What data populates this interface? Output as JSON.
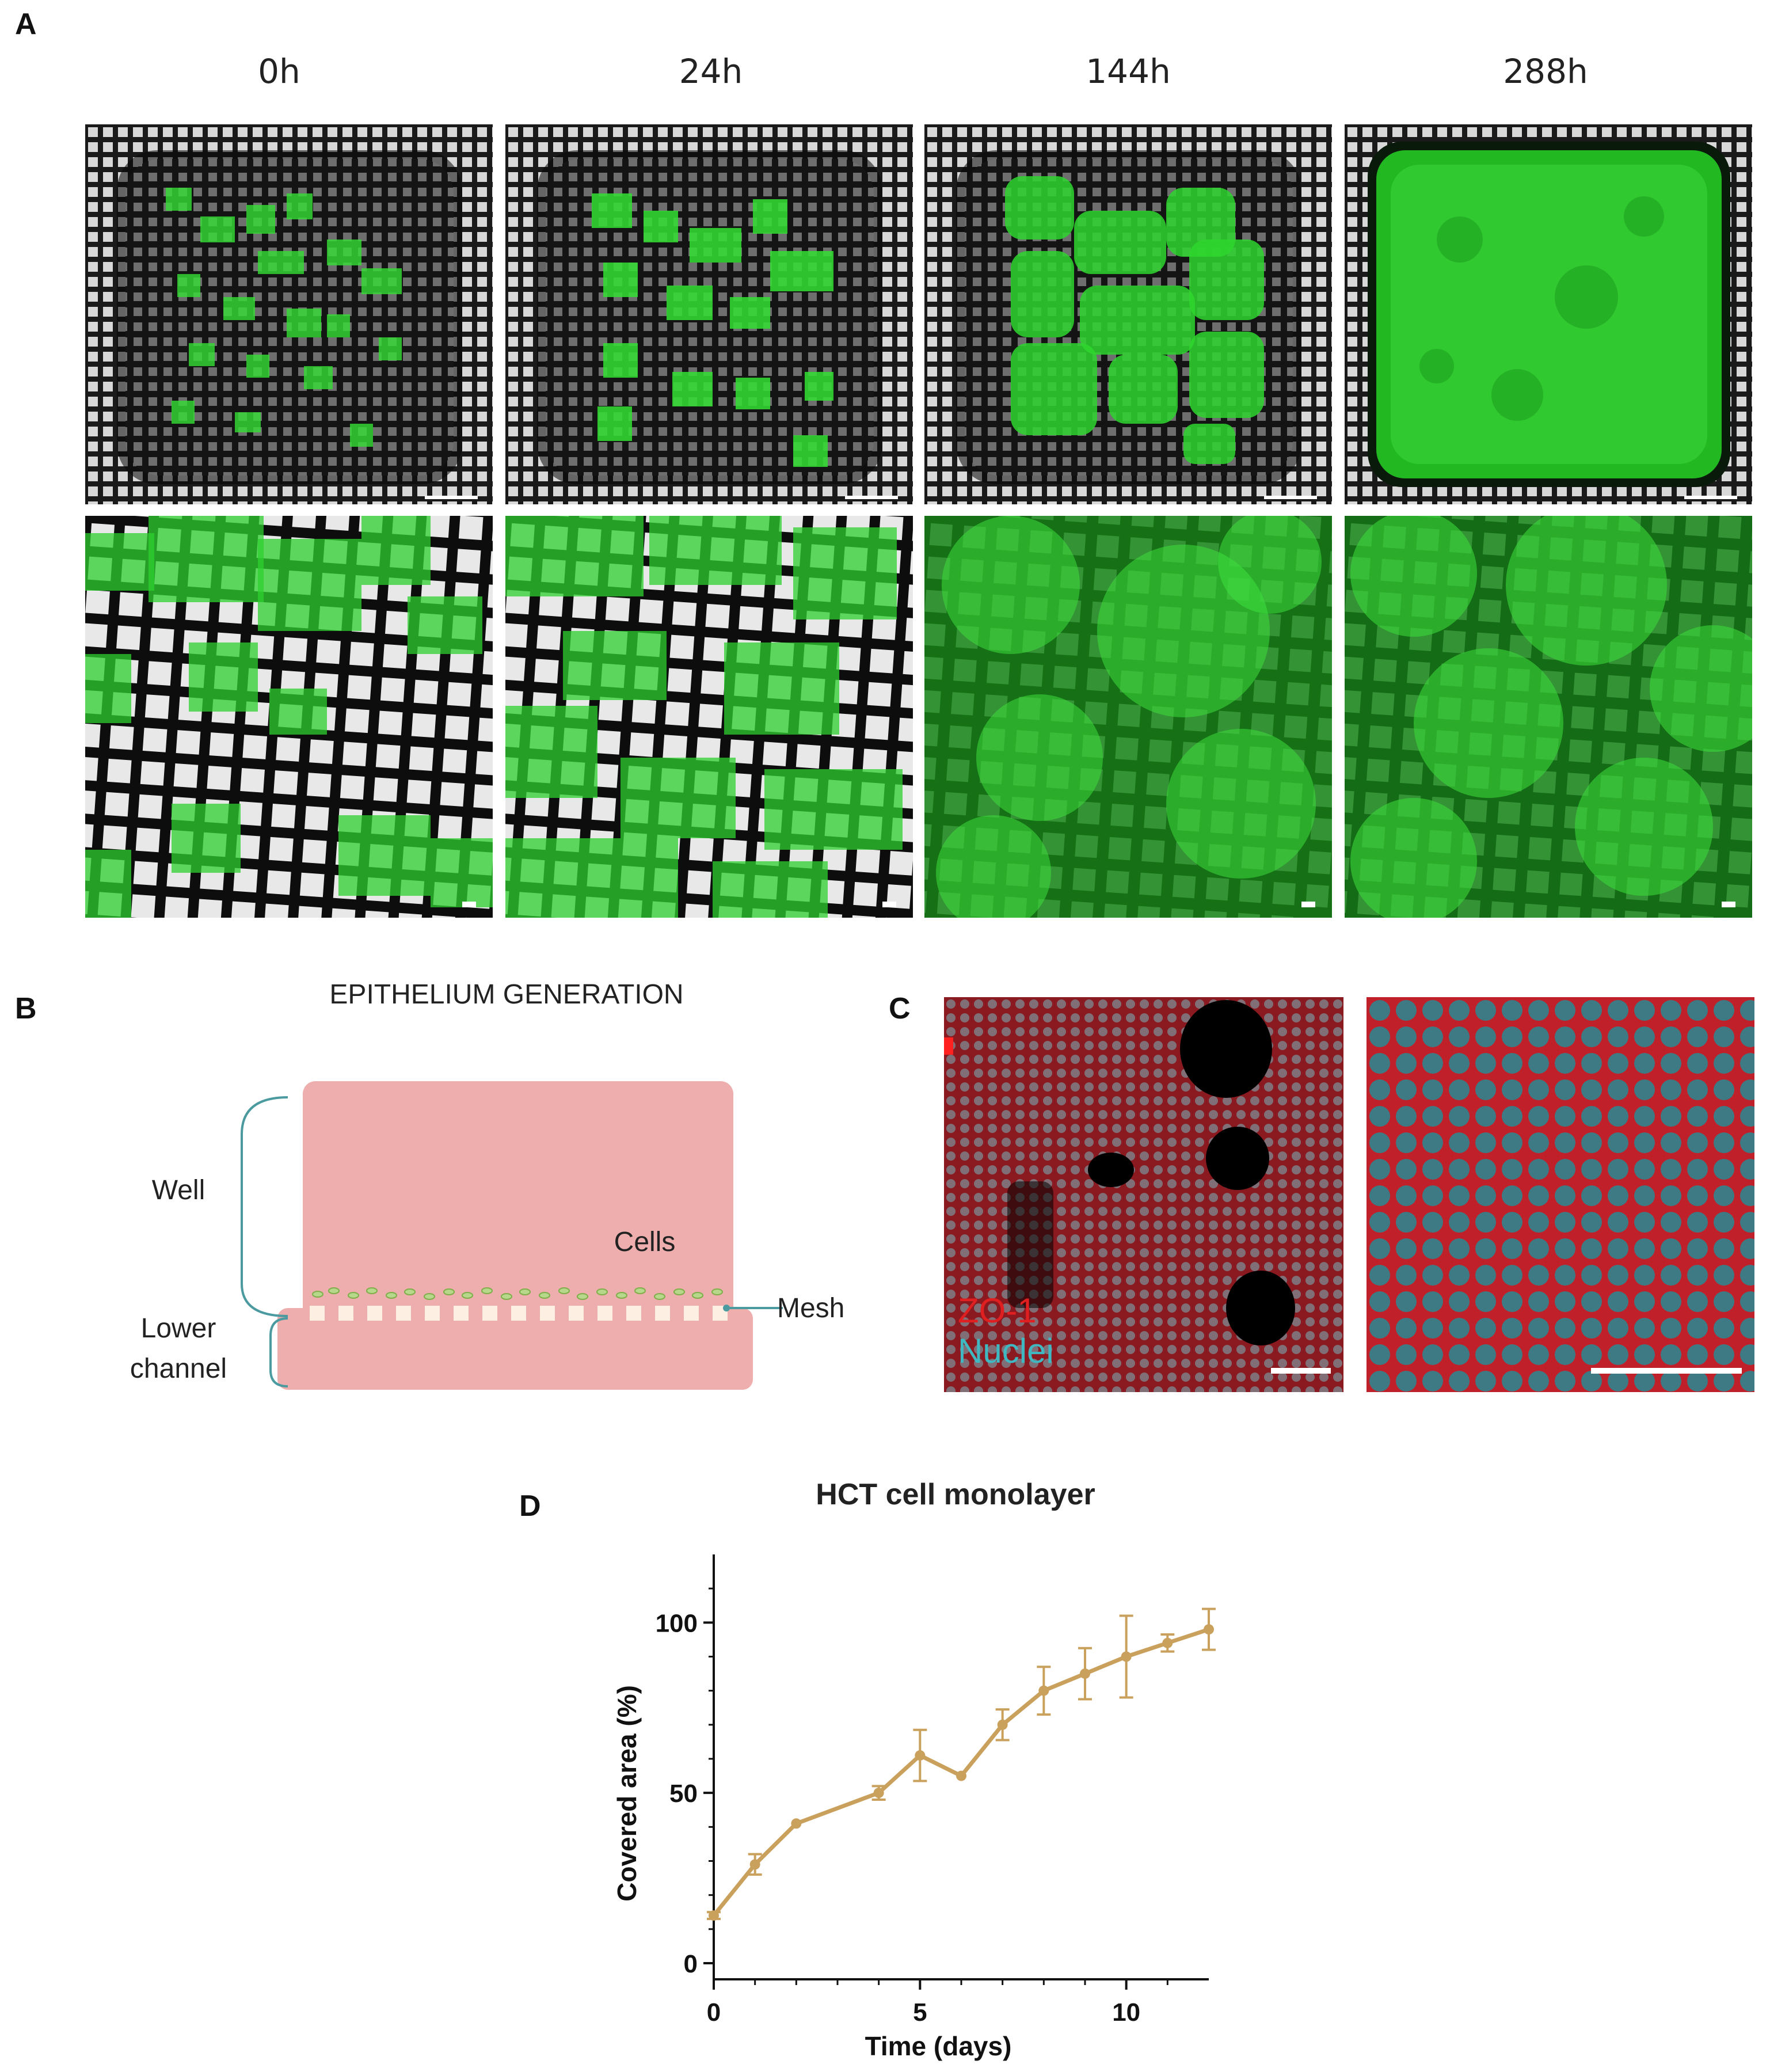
{
  "panels": {
    "a": {
      "letter": "A",
      "time_labels": [
        "0h",
        "24h",
        "144h",
        "288h"
      ]
    },
    "b": {
      "letter": "B",
      "title": "EPITHELIUM GENERATION",
      "labels": {
        "well": "Well",
        "cells": "Cells",
        "mesh": "Mesh",
        "lower_channel_line1": "Lower",
        "lower_channel_line2": "channel"
      }
    },
    "c": {
      "letter": "C",
      "legend": {
        "zo1": "ZO-1",
        "nuclei": "Nuclei"
      }
    },
    "d": {
      "letter": "D"
    }
  },
  "colors": {
    "well_fill": "#eeaeae",
    "mesh_square": "#fdf0e2",
    "bracket": "#4a9aa0",
    "zo1": "#e02020",
    "nuclei": "#3fb8c2",
    "line": "#c9a05c",
    "gfp": "#22d422"
  },
  "chart_data": {
    "type": "line",
    "title": "HCT cell monolayer",
    "xlabel": "Time (days)",
    "ylabel": "Covered area (%)",
    "xlim": [
      0,
      12
    ],
    "ylim": [
      0,
      120
    ],
    "xticks": [
      0,
      5,
      10
    ],
    "yticks": [
      0,
      50,
      100
    ],
    "grid": false,
    "series": [
      {
        "x": [
          0,
          1,
          2,
          4,
          5,
          6,
          7,
          8,
          9,
          10,
          11,
          12
        ],
        "y": [
          14,
          29,
          41,
          50,
          61,
          55,
          70,
          80,
          85,
          90,
          94,
          98
        ],
        "err": [
          1,
          3,
          0.5,
          2,
          7.5,
          0.5,
          4.5,
          7,
          7.5,
          12,
          2.5,
          6
        ]
      }
    ]
  }
}
